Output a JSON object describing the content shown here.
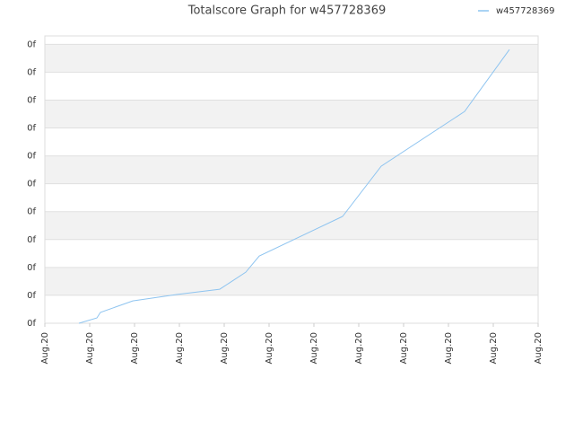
{
  "chart_data": {
    "type": "line",
    "title": "Totalscore Graph for w457728369",
    "xlim": [
      0,
      11
    ],
    "xticks": [
      {
        "value": 0,
        "label": "Aug.20"
      },
      {
        "value": 1,
        "label": "Aug.20"
      },
      {
        "value": 2,
        "label": "Aug.20"
      },
      {
        "value": 3,
        "label": "Aug.20"
      },
      {
        "value": 4,
        "label": "Aug.20"
      },
      {
        "value": 5,
        "label": "Aug.20"
      },
      {
        "value": 6,
        "label": "Aug.20"
      },
      {
        "value": 7,
        "label": "Aug.20"
      },
      {
        "value": 8,
        "label": "Aug.20"
      },
      {
        "value": 9,
        "label": "Aug.20"
      },
      {
        "value": 10,
        "label": "Aug.20"
      },
      {
        "value": 11,
        "label": "Aug.20"
      }
    ],
    "ylim": [
      0,
      10.3
    ],
    "yticks": [
      {
        "value": 0,
        "label": "0f"
      },
      {
        "value": 1,
        "label": "0f"
      },
      {
        "value": 2,
        "label": "0f"
      },
      {
        "value": 3,
        "label": "0f"
      },
      {
        "value": 4,
        "label": "0f"
      },
      {
        "value": 5,
        "label": "0f"
      },
      {
        "value": 6,
        "label": "0f"
      },
      {
        "value": 7,
        "label": "0f"
      },
      {
        "value": 8,
        "label": "0f"
      },
      {
        "value": 9,
        "label": "0f"
      },
      {
        "value": 10,
        "label": "0f"
      }
    ],
    "legend": "top-right",
    "series": [
      {
        "name": "w457728369",
        "color": "#8ec4f0",
        "x": [
          0.76,
          1.16,
          1.24,
          1.96,
          2.94,
          3.9,
          4.48,
          4.78,
          6.64,
          7.5,
          9.36,
          10.36
        ],
        "values": [
          0,
          0.19,
          0.39,
          0.8,
          1.03,
          1.22,
          1.83,
          2.41,
          3.83,
          5.63,
          7.59,
          9.81
        ]
      }
    ]
  }
}
